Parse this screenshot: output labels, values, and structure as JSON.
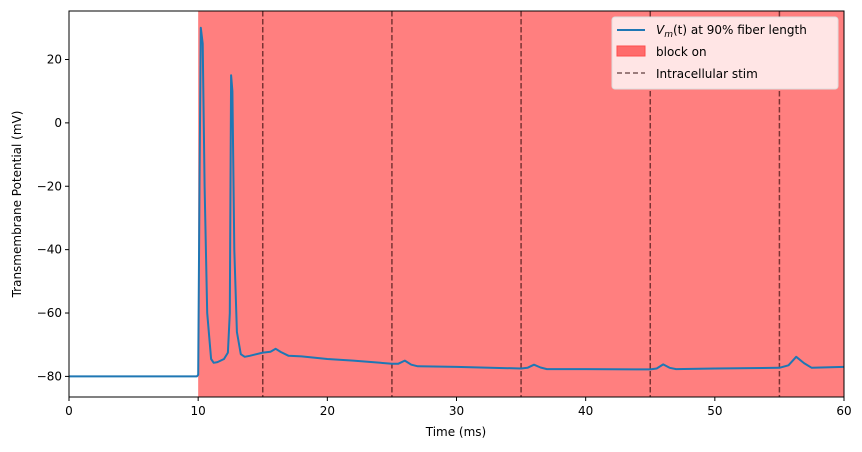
{
  "chart_data": {
    "type": "line",
    "title": "",
    "xlabel": "Time (ms)",
    "ylabel": "Transmembrane Potential (mV)",
    "xlim": [
      0,
      60
    ],
    "ylim": [
      -86.5,
      35.3
    ],
    "xticks": [
      0,
      10,
      20,
      30,
      40,
      50,
      60
    ],
    "yticks": [
      20,
      0,
      -20,
      -40,
      -60,
      -80
    ],
    "grid": false,
    "legend_position": "top-right",
    "legend": [
      {
        "label_main": "V",
        "label_sub": "m",
        "label_rest": "(t) at 90% fiber length",
        "kind": "line"
      },
      {
        "label": "block on",
        "kind": "patch"
      },
      {
        "label": "Intracellular stim",
        "kind": "dashed"
      }
    ],
    "block_region": {
      "start": 10,
      "end": 60,
      "color": "#ff7f7f"
    },
    "stim_times": [
      15,
      25,
      35,
      45,
      55
    ],
    "series": [
      {
        "color": "#1f77b4",
        "x": [
          0,
          9.9,
          10.0,
          10.1,
          10.2,
          10.35,
          10.5,
          10.7,
          11.0,
          11.2,
          11.5,
          12.0,
          12.3,
          12.45,
          12.55,
          12.65,
          12.8,
          13.0,
          13.3,
          13.6,
          14.0,
          15.0,
          15.6,
          16.0,
          16.4,
          17.0,
          18.0,
          20.0,
          22.0,
          25.0,
          25.5,
          26.0,
          26.5,
          27.0,
          30.0,
          35.0,
          35.5,
          36.0,
          36.5,
          37.0,
          40.0,
          45.0,
          45.5,
          46.0,
          46.5,
          47.0,
          50.0,
          55.0,
          55.7,
          56.3,
          56.9,
          57.5,
          60.0
        ],
        "y": [
          -80,
          -80,
          -79.5,
          -20,
          30,
          25,
          -20,
          -60,
          -74.5,
          -75.7,
          -75.5,
          -74.5,
          -72.5,
          -60,
          15,
          10,
          -40,
          -66,
          -73,
          -73.8,
          -73.5,
          -72.5,
          -72.2,
          -71.3,
          -72.3,
          -73.5,
          -73.7,
          -74.5,
          -75,
          -76,
          -76,
          -75,
          -76.3,
          -76.8,
          -77,
          -77.5,
          -77.3,
          -76.3,
          -77.2,
          -77.7,
          -77.7,
          -77.8,
          -77.5,
          -76.2,
          -77.3,
          -77.7,
          -77.5,
          -77.3,
          -76.5,
          -73.8,
          -75.8,
          -77.3,
          -77
        ]
      }
    ]
  }
}
